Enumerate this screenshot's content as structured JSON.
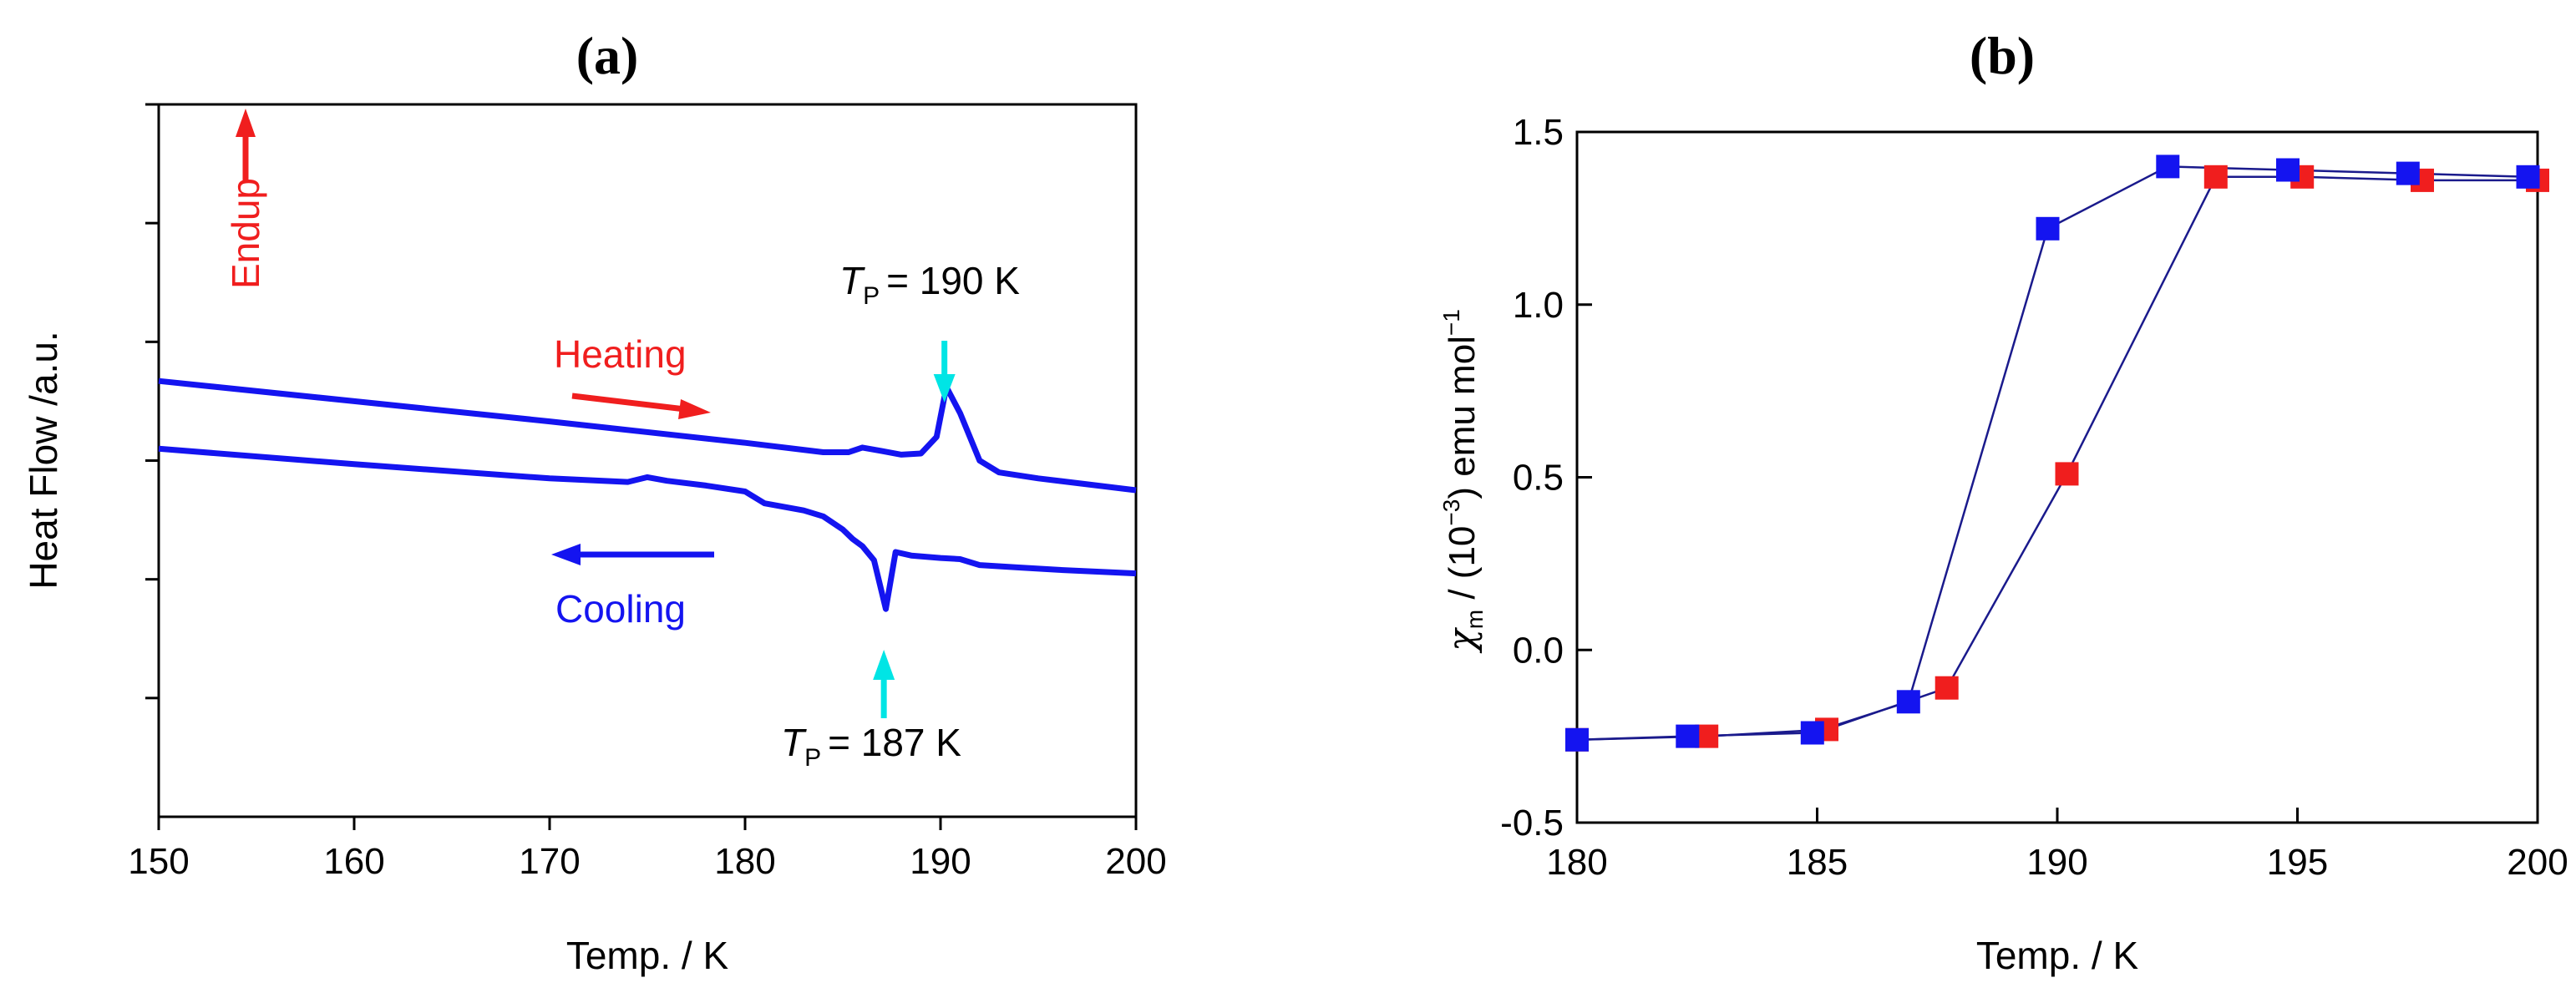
{
  "chart_data": [
    {
      "panel_label": "a",
      "type": "line",
      "title": "",
      "xlabel": "Temp. / K",
      "ylabel": "Heat Flow /a.u.",
      "xlim": [
        150,
        200
      ],
      "ylim": [
        0,
        6
      ],
      "xticks": [
        150,
        160,
        170,
        180,
        190,
        200
      ],
      "yticks_minor": [
        1,
        2,
        3,
        4,
        5,
        6
      ],
      "tick_labels": [
        "150",
        "160",
        "170",
        "180",
        "190",
        "200"
      ],
      "series_color": "#1414f0",
      "annotation_color": "#00e5e5",
      "series": [
        {
          "name": "Heating",
          "x": [
            150,
            160,
            170,
            180,
            184,
            185.3,
            186,
            187,
            188,
            189,
            189.8,
            190.3,
            191,
            192,
            193,
            195,
            200
          ],
          "y": [
            3.67,
            3.5,
            3.33,
            3.15,
            3.07,
            3.07,
            3.11,
            3.08,
            3.05,
            3.06,
            3.2,
            3.62,
            3.4,
            3.0,
            2.9,
            2.85,
            2.75
          ]
        },
        {
          "name": "Cooling",
          "x": [
            150,
            160,
            170,
            174,
            175,
            176,
            178,
            180,
            181,
            182,
            183,
            184,
            185,
            185.5,
            186,
            186.6,
            187.2,
            187.7,
            188.5,
            190,
            191,
            192,
            194,
            196,
            200
          ],
          "y": [
            3.1,
            2.97,
            2.85,
            2.82,
            2.86,
            2.83,
            2.79,
            2.74,
            2.64,
            2.61,
            2.58,
            2.53,
            2.42,
            2.34,
            2.28,
            2.16,
            1.75,
            2.23,
            2.2,
            2.18,
            2.17,
            2.12,
            2.1,
            2.08,
            2.05
          ]
        }
      ],
      "annotations": {
        "endup": "Endup",
        "heating": "Heating",
        "cooling": "Cooling",
        "peak_heat": {
          "symbol": "T",
          "subscript": "P",
          "value": "= 190 K",
          "x": 190.2
        },
        "peak_cool": {
          "symbol": "T",
          "subscript": "P",
          "value": "= 187 K",
          "x": 187.1
        }
      }
    },
    {
      "panel_label": "b",
      "type": "scatter",
      "title": "",
      "xlabel": "Temp. / K",
      "ylabel_parts": {
        "chi": "χ",
        "sub": "m",
        "mid": " / (10",
        "sup": "−3",
        "end": ") emu mol",
        "sup2": "−1"
      },
      "xlim": [
        180,
        200
      ],
      "ylim": [
        -0.5,
        1.5
      ],
      "xticks": [
        180,
        185,
        190,
        195,
        200
      ],
      "yticks": [
        -0.5,
        0.0,
        0.5,
        1.0,
        1.5
      ],
      "x_tick_labels": [
        "180",
        "185",
        "190",
        "195",
        "200"
      ],
      "y_tick_labels": [
        "-0.5",
        "0.0",
        "0.5",
        "1.0",
        "1.5"
      ],
      "line_color": "#1a1a8c",
      "series": [
        {
          "name": "heating",
          "color": "#f01e1e",
          "x": [
            180.0,
            182.7,
            185.2,
            187.7,
            190.2,
            193.3,
            195.1,
            197.6,
            200.0
          ],
          "y": [
            -0.26,
            -0.25,
            -0.23,
            -0.11,
            0.51,
            1.37,
            1.37,
            1.36,
            1.36
          ]
        },
        {
          "name": "cooling",
          "color": "#1414f0",
          "x": [
            180.0,
            182.3,
            184.9,
            186.9,
            189.8,
            192.3,
            194.8,
            197.3,
            199.8
          ],
          "y": [
            -0.26,
            -0.25,
            -0.24,
            -0.15,
            1.22,
            1.4,
            1.39,
            1.38,
            1.37
          ]
        }
      ]
    }
  ]
}
